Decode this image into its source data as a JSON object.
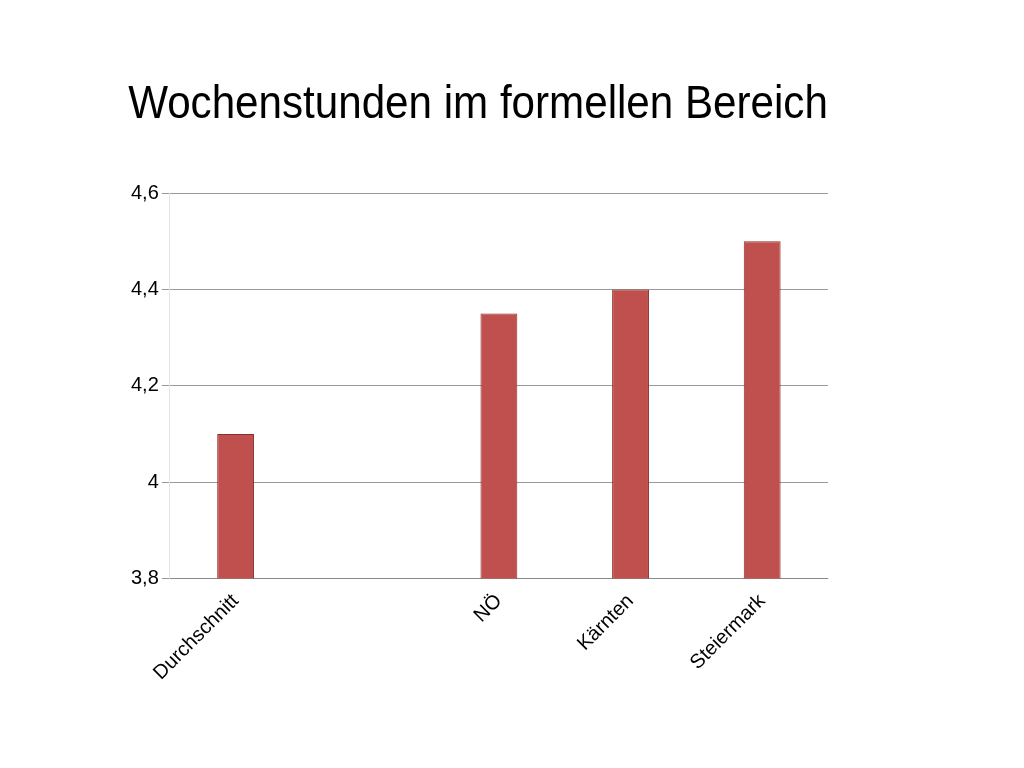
{
  "chart_data": {
    "type": "bar",
    "title": "Wochenstunden im formellen Bereich",
    "categories": [
      "Durchschnitt",
      null,
      "NÖ",
      "Kärnten",
      "Steiermark"
    ],
    "values": [
      4.1,
      null,
      4.35,
      4.4,
      4.5
    ],
    "color": "#c0504d",
    "ylim": [
      3.8,
      4.6
    ],
    "yticks": [
      {
        "value": 3.8,
        "label": "3,8"
      },
      {
        "value": 4,
        "label": "4"
      },
      {
        "value": 4.2,
        "label": "4,2"
      },
      {
        "value": 4.4,
        "label": "4,4"
      },
      {
        "value": 4.6,
        "label": "4,6"
      }
    ],
    "grid": "y"
  }
}
